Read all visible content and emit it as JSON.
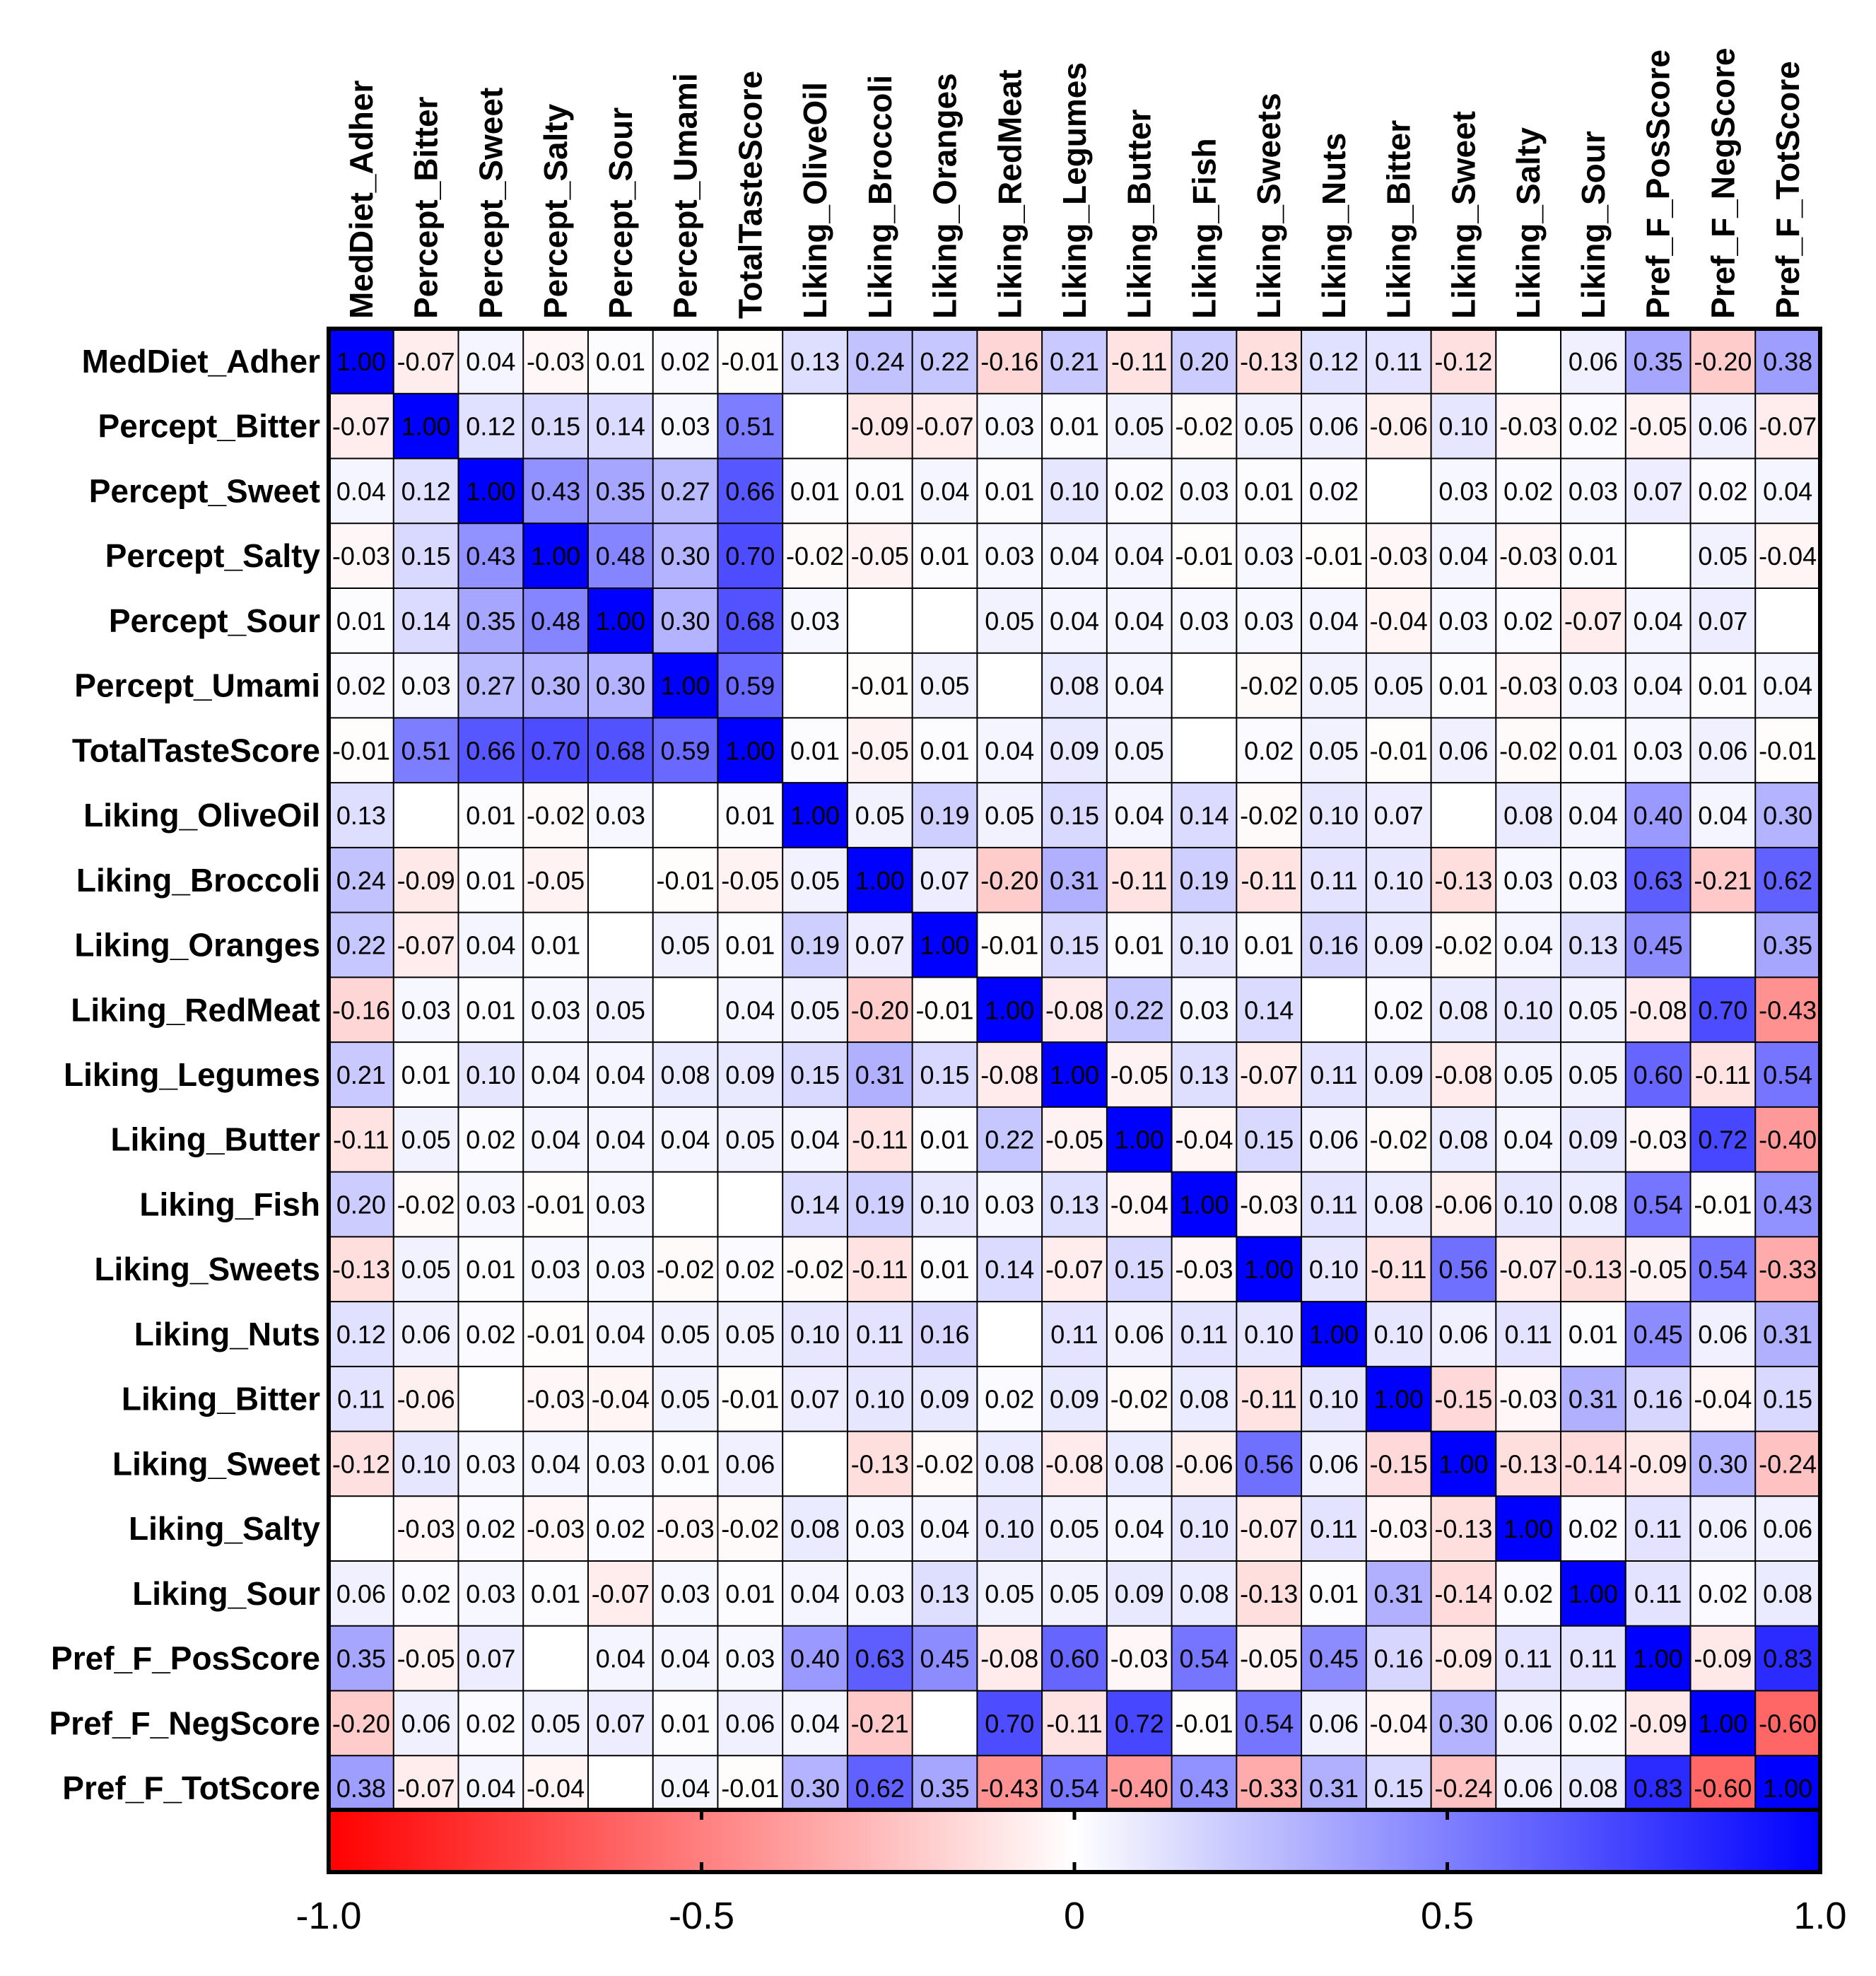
{
  "chart_data": {
    "type": "heatmap",
    "title": "",
    "variables": [
      "MedDiet_Adher",
      "Percept_Bitter",
      "Percept_Sweet",
      "Percept_Salty",
      "Percept_Sour",
      "Percept_Umami",
      "TotalTasteScore",
      "Liking_OliveOil",
      "Liking_Broccoli",
      "Liking_Oranges",
      "Liking_RedMeat",
      "Liking_Legumes",
      "Liking_Butter",
      "Liking_Fish",
      "Liking_Sweets",
      "Liking_Nuts",
      "Liking_Bitter",
      "Liking_Sweet",
      "Liking_Salty",
      "Liking_Sour",
      "Pref_F_PosScore",
      "Pref_F_NegScore",
      "Pref_F_TotScore"
    ],
    "value_labels": [
      [
        "1.00",
        "-0.07",
        "0.04",
        "-0.03",
        "0.01",
        "0.02",
        "-0.01",
        "0.13",
        "0.24",
        "0.22",
        "-0.16",
        "0.21",
        "-0.11",
        "0.20",
        "-0.13",
        "0.12",
        "0.11",
        "-0.12",
        "",
        "0.06",
        "0.35",
        "-0.20",
        "0.38"
      ],
      [
        "-0.07",
        "1.00",
        "0.12",
        "0.15",
        "0.14",
        "0.03",
        "0.51",
        "",
        "-0.09",
        "-0.07",
        "0.03",
        "0.01",
        "0.05",
        "-0.02",
        "0.05",
        "0.06",
        "-0.06",
        "0.10",
        "-0.03",
        "0.02",
        "-0.05",
        "0.06",
        "-0.07"
      ],
      [
        "0.04",
        "0.12",
        "1.00",
        "0.43",
        "0.35",
        "0.27",
        "0.66",
        "0.01",
        "0.01",
        "0.04",
        "0.01",
        "0.10",
        "0.02",
        "0.03",
        "0.01",
        "0.02",
        "",
        "0.03",
        "0.02",
        "0.03",
        "0.07",
        "0.02",
        "0.04"
      ],
      [
        "-0.03",
        "0.15",
        "0.43",
        "1.00",
        "0.48",
        "0.30",
        "0.70",
        "-0.02",
        "-0.05",
        "0.01",
        "0.03",
        "0.04",
        "0.04",
        "-0.01",
        "0.03",
        "-0.01",
        "-0.03",
        "0.04",
        "-0.03",
        "0.01",
        "",
        "0.05",
        "-0.04"
      ],
      [
        "0.01",
        "0.14",
        "0.35",
        "0.48",
        "1.00",
        "0.30",
        "0.68",
        "0.03",
        "",
        "",
        "0.05",
        "0.04",
        "0.04",
        "0.03",
        "0.03",
        "0.04",
        "-0.04",
        "0.03",
        "0.02",
        "-0.07",
        "0.04",
        "0.07",
        ""
      ],
      [
        "0.02",
        "0.03",
        "0.27",
        "0.30",
        "0.30",
        "1.00",
        "0.59",
        "",
        "-0.01",
        "0.05",
        "",
        "0.08",
        "0.04",
        "",
        "-0.02",
        "0.05",
        "0.05",
        "0.01",
        "-0.03",
        "0.03",
        "0.04",
        "0.01",
        "0.04"
      ],
      [
        "-0.01",
        "0.51",
        "0.66",
        "0.70",
        "0.68",
        "0.59",
        "1.00",
        "0.01",
        "-0.05",
        "0.01",
        "0.04",
        "0.09",
        "0.05",
        "",
        "0.02",
        "0.05",
        "-0.01",
        "0.06",
        "-0.02",
        "0.01",
        "0.03",
        "0.06",
        "-0.01"
      ],
      [
        "0.13",
        "",
        "0.01",
        "-0.02",
        "0.03",
        "",
        "0.01",
        "1.00",
        "0.05",
        "0.19",
        "0.05",
        "0.15",
        "0.04",
        "0.14",
        "-0.02",
        "0.10",
        "0.07",
        "",
        "0.08",
        "0.04",
        "0.40",
        "0.04",
        "0.30"
      ],
      [
        "0.24",
        "-0.09",
        "0.01",
        "-0.05",
        "",
        "-0.01",
        "-0.05",
        "0.05",
        "1.00",
        "0.07",
        "-0.20",
        "0.31",
        "-0.11",
        "0.19",
        "-0.11",
        "0.11",
        "0.10",
        "-0.13",
        "0.03",
        "0.03",
        "0.63",
        "-0.21",
        "0.62"
      ],
      [
        "0.22",
        "-0.07",
        "0.04",
        "0.01",
        "",
        "0.05",
        "0.01",
        "0.19",
        "0.07",
        "1.00",
        "-0.01",
        "0.15",
        "0.01",
        "0.10",
        "0.01",
        "0.16",
        "0.09",
        "-0.02",
        "0.04",
        "0.13",
        "0.45",
        "",
        "0.35"
      ],
      [
        "-0.16",
        "0.03",
        "0.01",
        "0.03",
        "0.05",
        "",
        "0.04",
        "0.05",
        "-0.20",
        "-0.01",
        "1.00",
        "-0.08",
        "0.22",
        "0.03",
        "0.14",
        "",
        "0.02",
        "0.08",
        "0.10",
        "0.05",
        "-0.08",
        "0.70",
        "-0.43"
      ],
      [
        "0.21",
        "0.01",
        "0.10",
        "0.04",
        "0.04",
        "0.08",
        "0.09",
        "0.15",
        "0.31",
        "0.15",
        "-0.08",
        "1.00",
        "-0.05",
        "0.13",
        "-0.07",
        "0.11",
        "0.09",
        "-0.08",
        "0.05",
        "0.05",
        "0.60",
        "-0.11",
        "0.54"
      ],
      [
        "-0.11",
        "0.05",
        "0.02",
        "0.04",
        "0.04",
        "0.04",
        "0.05",
        "0.04",
        "-0.11",
        "0.01",
        "0.22",
        "-0.05",
        "1.00",
        "-0.04",
        "0.15",
        "0.06",
        "-0.02",
        "0.08",
        "0.04",
        "0.09",
        "-0.03",
        "0.72",
        "-0.40"
      ],
      [
        "0.20",
        "-0.02",
        "0.03",
        "-0.01",
        "0.03",
        "",
        "",
        "0.14",
        "0.19",
        "0.10",
        "0.03",
        "0.13",
        "-0.04",
        "1.00",
        "-0.03",
        "0.11",
        "0.08",
        "-0.06",
        "0.10",
        "0.08",
        "0.54",
        "-0.01",
        "0.43"
      ],
      [
        "-0.13",
        "0.05",
        "0.01",
        "0.03",
        "0.03",
        "-0.02",
        "0.02",
        "-0.02",
        "-0.11",
        "0.01",
        "0.14",
        "-0.07",
        "0.15",
        "-0.03",
        "1.00",
        "0.10",
        "-0.11",
        "0.56",
        "-0.07",
        "-0.13",
        "-0.05",
        "0.54",
        "-0.33"
      ],
      [
        "0.12",
        "0.06",
        "0.02",
        "-0.01",
        "0.04",
        "0.05",
        "0.05",
        "0.10",
        "0.11",
        "0.16",
        "",
        "0.11",
        "0.06",
        "0.11",
        "0.10",
        "1.00",
        "0.10",
        "0.06",
        "0.11",
        "0.01",
        "0.45",
        "0.06",
        "0.31"
      ],
      [
        "0.11",
        "-0.06",
        "",
        "-0.03",
        "-0.04",
        "0.05",
        "-0.01",
        "0.07",
        "0.10",
        "0.09",
        "0.02",
        "0.09",
        "-0.02",
        "0.08",
        "-0.11",
        "0.10",
        "1.00",
        "-0.15",
        "-0.03",
        "0.31",
        "0.16",
        "-0.04",
        "0.15"
      ],
      [
        "-0.12",
        "0.10",
        "0.03",
        "0.04",
        "0.03",
        "0.01",
        "0.06",
        "",
        "-0.13",
        "-0.02",
        "0.08",
        "-0.08",
        "0.08",
        "-0.06",
        "0.56",
        "0.06",
        "-0.15",
        "1.00",
        "-0.13",
        "-0.14",
        "-0.09",
        "0.30",
        "-0.24"
      ],
      [
        "",
        "-0.03",
        "0.02",
        "-0.03",
        "0.02",
        "-0.03",
        "-0.02",
        "0.08",
        "0.03",
        "0.04",
        "0.10",
        "0.05",
        "0.04",
        "0.10",
        "-0.07",
        "0.11",
        "-0.03",
        "-0.13",
        "1.00",
        "0.02",
        "0.11",
        "0.06",
        "0.06"
      ],
      [
        "0.06",
        "0.02",
        "0.03",
        "0.01",
        "-0.07",
        "0.03",
        "0.01",
        "0.04",
        "0.03",
        "0.13",
        "0.05",
        "0.05",
        "0.09",
        "0.08",
        "-0.13",
        "0.01",
        "0.31",
        "-0.14",
        "0.02",
        "1.00",
        "0.11",
        "0.02",
        "0.08"
      ],
      [
        "0.35",
        "-0.05",
        "0.07",
        "",
        "0.04",
        "0.04",
        "0.03",
        "0.40",
        "0.63",
        "0.45",
        "-0.08",
        "0.60",
        "-0.03",
        "0.54",
        "-0.05",
        "0.45",
        "0.16",
        "-0.09",
        "0.11",
        "0.11",
        "1.00",
        "-0.09",
        "0.83"
      ],
      [
        "-0.20",
        "0.06",
        "0.02",
        "0.05",
        "0.07",
        "0.01",
        "0.06",
        "0.04",
        "-0.21",
        "",
        "0.70",
        "-0.11",
        "0.72",
        "-0.01",
        "0.54",
        "0.06",
        "-0.04",
        "0.30",
        "0.06",
        "0.02",
        "-0.09",
        "1.00",
        "-0.60"
      ],
      [
        "0.38",
        "-0.07",
        "0.04",
        "-0.04",
        "",
        "0.04",
        "-0.01",
        "0.30",
        "0.62",
        "0.35",
        "-0.43",
        "0.54",
        "-0.40",
        "0.43",
        "-0.33",
        "0.31",
        "0.15",
        "-0.24",
        "0.06",
        "0.08",
        "0.83",
        "-0.60",
        "1.00"
      ]
    ],
    "colorbar": {
      "min": -1.0,
      "max": 1.0,
      "ticks": [
        -1.0,
        -0.5,
        0,
        0.5,
        1.0
      ],
      "tick_labels": [
        "-1.0",
        "-0.5",
        "0",
        "0.5",
        "1.0"
      ],
      "low_color": "#ff0000",
      "mid_color": "#ffffff",
      "high_color": "#0000ff"
    }
  }
}
